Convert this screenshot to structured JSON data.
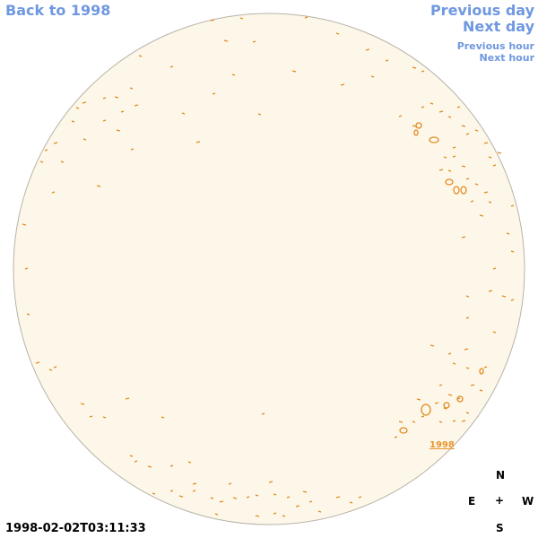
{
  "links": {
    "back": "Back to 1998",
    "previous_day": "Previous day",
    "next_day": "Next day",
    "previous_hour": "Previous hour",
    "next_hour": "Next hour"
  },
  "region_label": "1998",
  "compass": {
    "north": "N",
    "east": "E",
    "center": "+",
    "west": "W",
    "south": "S"
  },
  "timestamp": "1998-02-02T03:11:33"
}
